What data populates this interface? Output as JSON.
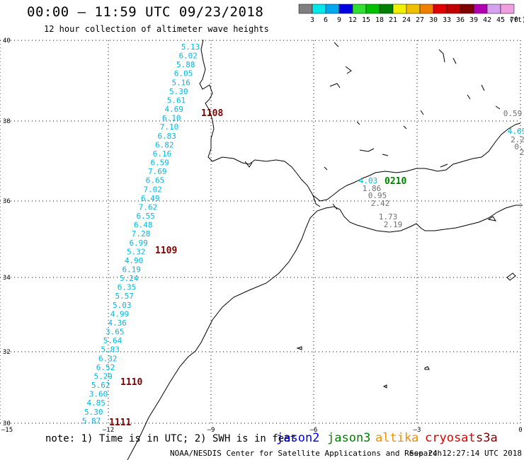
{
  "title": "00:00 – 11:59 UTC 09/23/2018",
  "subtitle": "12 hour collection of altimeter wave heights",
  "legend": {
    "labels": [
      "3",
      "6",
      "9",
      "12",
      "15",
      "18",
      "21",
      "24",
      "27",
      "30",
      "33",
      "36",
      "39",
      "42",
      "45",
      "70",
      "(ft)"
    ],
    "colors": [
      "#808080",
      "#00e8e8",
      "#00a8f0",
      "#0000e0",
      "#30e030",
      "#00c000",
      "#008000",
      "#f0f000",
      "#f0c000",
      "#f08000",
      "#e00000",
      "#c00000",
      "#800000",
      "#b000b0",
      "#d8a0f0",
      "#f0a0e0",
      "#000000"
    ]
  },
  "axes": {
    "lon_ticks": [
      "–15",
      "–12",
      "–9",
      "–6",
      "–3",
      "0"
    ],
    "lat_ticks": [
      "40",
      "38",
      "36",
      "34",
      "32",
      "30"
    ]
  },
  "track_colors": {
    "cyan": "#00b8e0",
    "darkred": "#800000",
    "green": "#008000",
    "gray": "#707070"
  },
  "tracks": [
    {
      "color": "cyan",
      "values": [
        "5.13",
        "6.02",
        "5.88",
        "6.05",
        "5.16",
        "5.30",
        "5.61",
        "4.69",
        "6.10",
        "7.10",
        "6.83",
        "6.82",
        "6.16",
        "6.59",
        "7.69",
        "6.65",
        "7.02",
        "6.49",
        "7.62",
        "6.55",
        "6.48",
        "7.28",
        "6.99",
        "5.32",
        "4.90",
        "6.19",
        "5.24",
        "6.35",
        "5.57",
        "5.03",
        "4.99",
        "4.36",
        "3.65",
        "5.64",
        "5.83",
        "6.32",
        "6.52",
        "5.29",
        "5.62",
        "3.60",
        "4.85",
        "5.30",
        "5.87"
      ]
    },
    {
      "color": "cyan",
      "values": [
        "4.03"
      ]
    },
    {
      "color": "gray",
      "values": [
        "1.86",
        "0.95",
        "2.42",
        "1.73",
        "2.19"
      ]
    },
    {
      "color": "gray",
      "values": [
        "0.59",
        "2.2",
        "0.",
        "2"
      ]
    },
    {
      "color": "cyan",
      "values": [
        "4.69"
      ]
    }
  ],
  "time_labels": [
    {
      "text": "1108",
      "color": "darkred"
    },
    {
      "text": "1109",
      "color": "darkred"
    },
    {
      "text": "1110",
      "color": "darkred"
    },
    {
      "text": "1111",
      "color": "darkred"
    },
    {
      "text": "0210",
      "color": "green"
    }
  ],
  "footer": {
    "note": "note: 1) Time is in UTC; 2) SWH is in feet",
    "satellites": [
      {
        "name": "jason2",
        "color": "#0000e0"
      },
      {
        "name": "jason3",
        "color": "#008000"
      },
      {
        "name": "altika",
        "color": "#f09000"
      },
      {
        "name": "cryosat",
        "color": "#e00000"
      },
      {
        "name": "s3a",
        "color": "#800000"
      }
    ],
    "credit": "NOAA/NESDIS Center for Satellite Applications and Research",
    "timestamp": "Sep 24 12:27:14 UTC 2018"
  }
}
